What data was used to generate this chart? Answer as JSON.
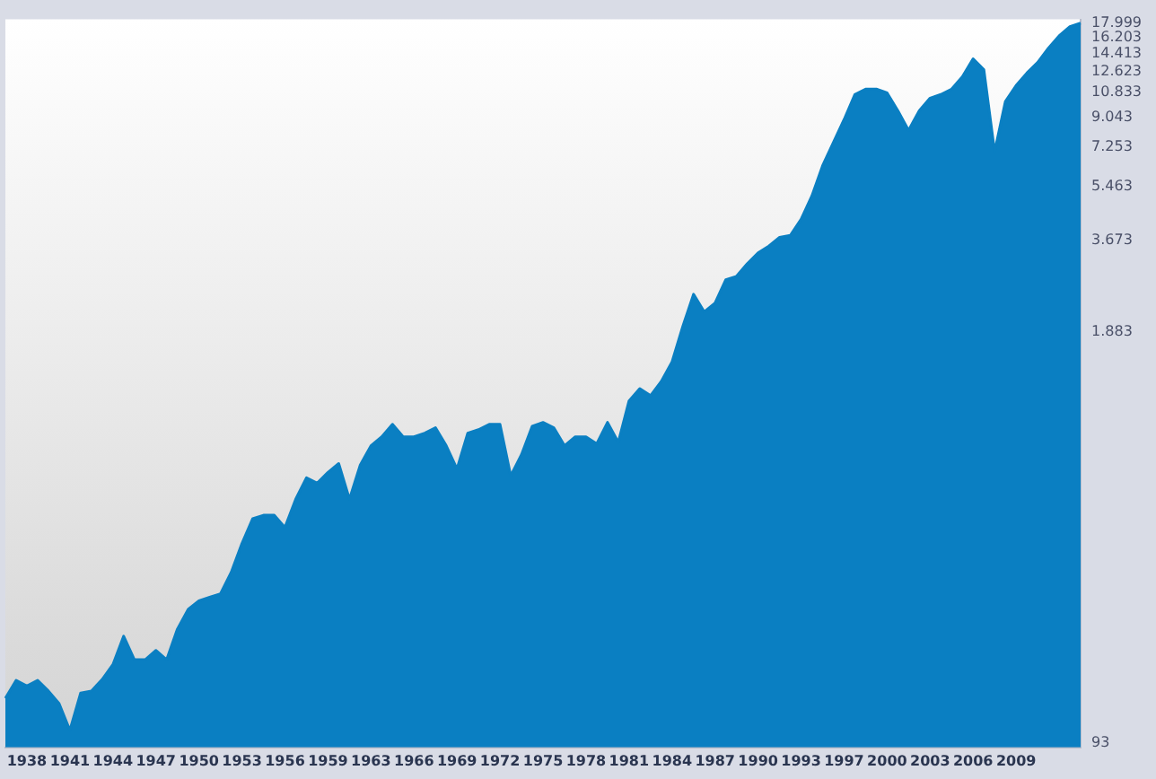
{
  "chart_data": {
    "type": "area",
    "log": true,
    "grid": false,
    "legend": false,
    "categories": [
      null,
      null,
      "1938",
      null,
      null,
      null,
      "1941",
      null,
      null,
      null,
      "1944",
      null,
      null,
      null,
      "1947",
      null,
      null,
      null,
      "1950",
      null,
      null,
      null,
      "1953",
      null,
      null,
      null,
      "1956",
      null,
      null,
      null,
      "1959",
      null,
      null,
      null,
      "1963",
      null,
      null,
      null,
      "1966",
      null,
      null,
      null,
      "1969",
      null,
      null,
      null,
      "1972",
      null,
      null,
      null,
      "1975",
      null,
      null,
      null,
      "1978",
      null,
      null,
      null,
      "1981",
      null,
      null,
      null,
      "1984",
      null,
      null,
      null,
      "1987",
      null,
      null,
      null,
      "1990",
      null,
      null,
      null,
      "1993",
      null,
      null,
      null,
      "1997",
      null,
      null,
      null,
      "2000",
      null,
      null,
      null,
      "2003",
      null,
      null,
      null,
      "2006",
      null,
      null,
      null,
      "2009",
      null,
      null,
      null,
      null,
      null,
      null
    ],
    "series": [
      {
        "color": "#0a7fc2",
        "values": [
          129,
          147,
          141,
          147,
          136,
          124,
          102,
          134,
          136,
          148,
          165,
          203,
          171,
          171,
          183,
          171,
          214,
          247,
          263,
          270,
          277,
          324,
          400,
          480,
          492,
          492,
          450,
          553,
          647,
          622,
          673,
          718,
          553,
          710,
          818,
          873,
          957,
          873,
          873,
          897,
          933,
          818,
          690,
          897,
          920,
          957,
          957,
          656,
          767,
          944,
          970,
          933,
          818,
          873,
          873,
          830,
          970,
          839,
          1135,
          1242,
          1180,
          1309,
          1510,
          1959,
          2477,
          2178,
          2323,
          2754,
          2825,
          3097,
          3350,
          3524,
          3758,
          3811,
          4285,
          5080,
          6340,
          7516,
          8890,
          10680,
          11110,
          11110,
          10810,
          9495,
          8222,
          9495,
          10400,
          10680,
          11110,
          12160,
          13870,
          12820,
          7031,
          10140,
          11400,
          12490,
          13500,
          14990,
          16410,
          17540,
          17999
        ]
      }
    ],
    "ylim": [
      90,
      18500
    ],
    "yticks": [
      {
        "value": 17999,
        "label": "17.999"
      },
      {
        "value": 16203,
        "label": "16.203"
      },
      {
        "value": 14413,
        "label": "14.413"
      },
      {
        "value": 12623,
        "label": "12.623"
      },
      {
        "value": 10833,
        "label": "10.833"
      },
      {
        "value": 9043,
        "label": "9.043"
      },
      {
        "value": 7253,
        "label": "7.253"
      },
      {
        "value": 5463,
        "label": "5.463"
      },
      {
        "value": 3673,
        "label": "3.673"
      },
      {
        "value": 1883,
        "label": "1.883"
      },
      93
    ]
  }
}
